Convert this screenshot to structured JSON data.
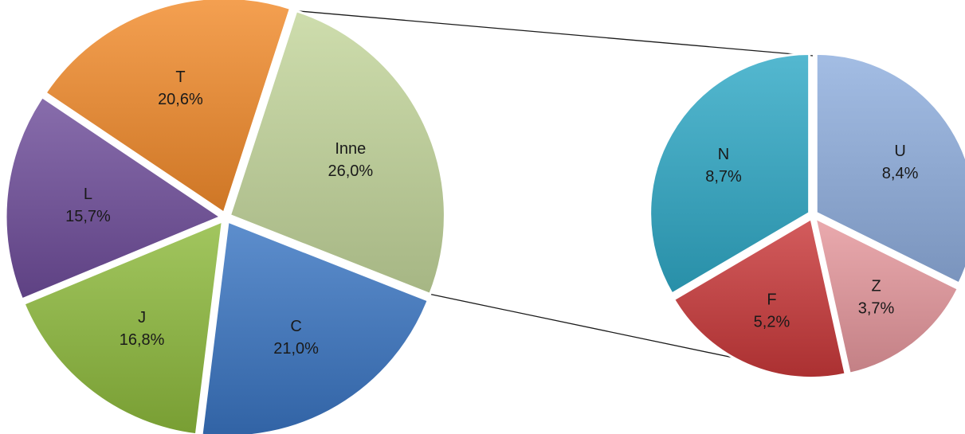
{
  "chart_data": {
    "type": "pie",
    "subtype": "bar-of-pie style (pie of pie)",
    "main_pie": {
      "slices": [
        {
          "label": "Inne",
          "value": 26.0,
          "value_label": "26,0%",
          "color": "#c3d69b"
        },
        {
          "label": "C",
          "value": 21.0,
          "value_label": "21,0%",
          "color": "#3a75c2"
        },
        {
          "label": "J",
          "value": 16.8,
          "value_label": "16,8%",
          "color": "#8dba3c"
        },
        {
          "label": "L",
          "value": 15.7,
          "value_label": "15,7%",
          "color": "#6e4d9a"
        },
        {
          "label": "T",
          "value": 20.6,
          "value_label": "20,6%",
          "color": "#f28b2b"
        }
      ]
    },
    "secondary_pie": {
      "slices": [
        {
          "label": "U",
          "value": 8.4,
          "value_label": "8,4%",
          "color": "#8faede"
        },
        {
          "label": "Z",
          "value": 3.7,
          "value_label": "3,7%",
          "color": "#e5979c"
        },
        {
          "label": "F",
          "value": 5.2,
          "value_label": "5,2%",
          "color": "#c9383a"
        },
        {
          "label": "N",
          "value": 8.7,
          "value_label": "8,7%",
          "color": "#2fa8c6"
        }
      ]
    },
    "legend": "none"
  }
}
